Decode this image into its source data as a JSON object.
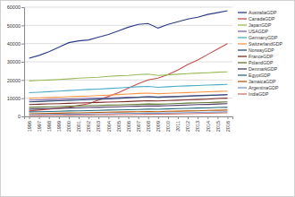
{
  "chart_data": {
    "type": "line",
    "categories": [
      "1996",
      "1997",
      "1998",
      "1999",
      "2000",
      "2001",
      "2002",
      "2003",
      "2004",
      "2005",
      "2006",
      "2007",
      "2008",
      "2009",
      "2010",
      "2011",
      "2012",
      "2013",
      "2014",
      "2015",
      "2016"
    ],
    "ylim": [
      0,
      60000
    ],
    "yticks": [
      0,
      10000,
      20000,
      30000,
      40000,
      50000,
      60000
    ],
    "grid": true,
    "legend": "right",
    "series": [
      {
        "name": "AustraliaGDP",
        "color": "#2E3A87",
        "values": [
          32000,
          33500,
          35500,
          38000,
          40500,
          41500,
          42000,
          43500,
          45000,
          47000,
          49000,
          50500,
          51000,
          48500,
          50500,
          52000,
          53500,
          54500,
          56000,
          57000,
          58000
        ]
      },
      {
        "name": "CanadaGDP",
        "color": "#C0504D",
        "values": [
          3000,
          3500,
          4000,
          4500,
          5000,
          6000,
          7000,
          9000,
          11000,
          13000,
          15500,
          18000,
          20000,
          21000,
          23000,
          25500,
          28500,
          31000,
          34000,
          37000,
          40000
        ]
      },
      {
        "name": "JapanGDP",
        "color": "#9BBB59",
        "values": [
          19500,
          19800,
          20000,
          20300,
          20600,
          21000,
          21300,
          21500,
          22000,
          22300,
          22500,
          23000,
          23200,
          22500,
          22800,
          23200,
          23500,
          23800,
          24000,
          24300,
          24500
        ]
      },
      {
        "name": "USAGDP",
        "color": "#8064A2",
        "values": [
          9000,
          9100,
          9300,
          9400,
          9600,
          9700,
          9900,
          10000,
          10200,
          10300,
          10500,
          10600,
          10800,
          10700,
          10900,
          11100,
          11300,
          11500,
          11600,
          11800,
          12000
        ]
      },
      {
        "name": "GermanyGDP",
        "color": "#4BACC6",
        "values": [
          13000,
          13300,
          13600,
          13900,
          14200,
          14500,
          14800,
          15000,
          15300,
          15600,
          16000,
          16300,
          16500,
          16000,
          16300,
          16600,
          16800,
          17000,
          17200,
          17400,
          17600
        ]
      },
      {
        "name": "SwitzerlandGDP",
        "color": "#F79646",
        "values": [
          10000,
          10200,
          10400,
          10600,
          10800,
          11000,
          11200,
          11400,
          11700,
          12000,
          12300,
          12600,
          12800,
          12500,
          12700,
          12900,
          13100,
          13300,
          13500,
          13700,
          13900
        ]
      },
      {
        "name": "NorwayGDP",
        "color": "#2C4D75",
        "values": [
          8000,
          8200,
          8400,
          8600,
          8800,
          9000,
          9200,
          9400,
          9600,
          9900,
          10200,
          10500,
          10800,
          10500,
          10700,
          10900,
          11100,
          11300,
          11500,
          11700,
          11900
        ]
      },
      {
        "name": "FranceGDP",
        "color": "#772C2A",
        "values": [
          6500,
          6700,
          6900,
          7000,
          7200,
          7400,
          7500,
          7700,
          7900,
          8000,
          8200,
          8400,
          8600,
          8500,
          8700,
          8900,
          9100,
          9300,
          9500,
          9800,
          10000
        ]
      },
      {
        "name": "PolandGDP",
        "color": "#5F7530",
        "values": [
          5000,
          5100,
          5300,
          5400,
          5600,
          5700,
          5900,
          6000,
          6200,
          6300,
          6500,
          6600,
          6800,
          6700,
          6900,
          7100,
          7300,
          7500,
          7600,
          7800,
          8000
        ]
      },
      {
        "name": "DenmarkGDP",
        "color": "#4D3B62",
        "values": [
          4000,
          4100,
          4300,
          4400,
          4600,
          4700,
          4900,
          5000,
          5200,
          5300,
          5500,
          5600,
          5800,
          5700,
          5900,
          6100,
          6300,
          6500,
          6600,
          6800,
          7000
        ]
      },
      {
        "name": "EgyptGDP",
        "color": "#276A7C",
        "values": [
          2500,
          2600,
          2700,
          2800,
          3000,
          3100,
          3200,
          3300,
          3500,
          3600,
          3700,
          3800,
          4000,
          3900,
          4100,
          4300,
          4400,
          4600,
          4700,
          4900,
          5000
        ]
      },
      {
        "name": "JamaicaGDP",
        "color": "#B65708",
        "values": [
          1500,
          1600,
          1700,
          1800,
          1900,
          2000,
          2100,
          2200,
          2300,
          2400,
          2500,
          2600,
          2700,
          2600,
          2800,
          2900,
          3000,
          3100,
          3300,
          3400,
          3500
        ]
      },
      {
        "name": "ArgentinaGDP",
        "color": "#729ACA",
        "values": [
          1000,
          1100,
          1100,
          1200,
          1300,
          1300,
          1400,
          1500,
          1500,
          1600,
          1700,
          1700,
          1800,
          1800,
          1900,
          2000,
          2100,
          2200,
          2300,
          2400,
          2500
        ]
      },
      {
        "name": "IndiaGDP",
        "color": "#CD7371",
        "values": [
          500,
          550,
          600,
          650,
          700,
          750,
          800,
          850,
          900,
          950,
          1000,
          1100,
          1150,
          1200,
          1300,
          1400,
          1500,
          1600,
          1700,
          1850,
          2000
        ]
      }
    ]
  }
}
